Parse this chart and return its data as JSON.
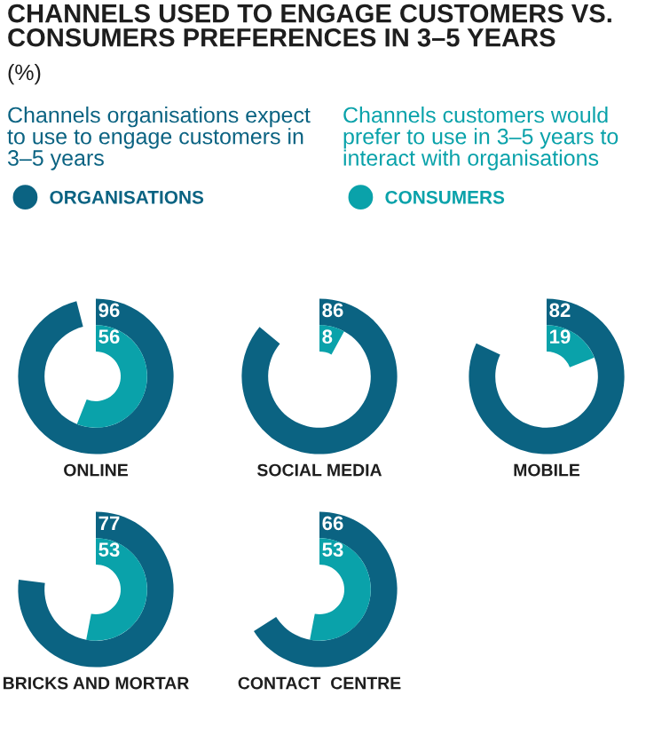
{
  "chart_data": [
    {
      "type": "other",
      "title": "CHANNELS USED TO ENGAGE CUSTOMERS VS. CONSUMERS PREFERENCES IN 3–5 YEARS",
      "subtitle": "(%)",
      "annotations": [
        "Channels organisations expect\nto use to engage customers in\n3–5 years",
        "Channels customers would\nprefer to use in 3–5 years to\ninteract with organisations"
      ],
      "categories": [
        "ONLINE"
      ],
      "series": [
        {
          "name": "ORGANISATIONS",
          "color": "#0b6382",
          "values": [
            96
          ]
        },
        {
          "name": "CONSUMERS",
          "color": "#0aa2aa",
          "values": [
            56
          ]
        }
      ],
      "data_labels": true,
      "legend": "top"
    },
    {
      "type": "other",
      "categories": [
        "SOCIAL MEDIA"
      ],
      "series": [
        {
          "color": "#0b6382",
          "values": [
            86
          ]
        },
        {
          "color": "#0aa2aa",
          "values": [
            8
          ]
        }
      ],
      "data_labels": true
    },
    {
      "type": "other",
      "categories": [
        "MOBILE"
      ],
      "series": [
        {
          "color": "#0b6382",
          "values": [
            82
          ]
        },
        {
          "color": "#0aa2aa",
          "values": [
            19
          ]
        }
      ],
      "data_labels": true
    },
    {
      "type": "other",
      "categories": [
        "BRICKS AND MORTAR"
      ],
      "series": [
        {
          "color": "#0b6382",
          "values": [
            77
          ]
        },
        {
          "color": "#0aa2aa",
          "values": [
            53
          ]
        }
      ],
      "data_labels": true
    },
    {
      "type": "other",
      "categories": [
        "CONTACT  CENTRE"
      ],
      "series": [
        {
          "color": "#0b6382",
          "values": [
            66
          ]
        },
        {
          "color": "#0aa2aa",
          "values": [
            53
          ]
        }
      ],
      "data_labels": true
    }
  ]
}
